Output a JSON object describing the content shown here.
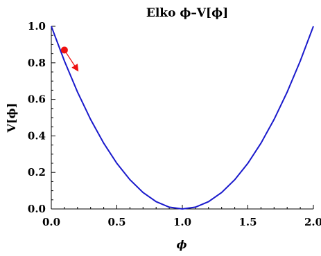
{
  "chart_data": {
    "type": "line",
    "title": "Elko ϕ–V[ϕ]",
    "xlabel": "ϕ",
    "ylabel": "V[ϕ]",
    "xlim": [
      0,
      2
    ],
    "ylim": [
      0,
      1
    ],
    "xticks": [
      "0.0",
      "0.5",
      "1.0",
      "1.5",
      "2.0"
    ],
    "yticks": [
      "0.0",
      "0.2",
      "0.4",
      "0.6",
      "0.8",
      "1.0"
    ],
    "series": [
      {
        "color": "#1a1acc",
        "x": [
          0.0,
          0.1,
          0.2,
          0.3,
          0.4,
          0.5,
          0.6,
          0.7,
          0.8,
          0.9,
          1.0,
          1.1,
          1.2,
          1.3,
          1.4,
          1.5,
          1.6,
          1.7,
          1.8,
          1.9,
          2.0
        ],
        "y": [
          1.0,
          0.81,
          0.64,
          0.49,
          0.36,
          0.25,
          0.16,
          0.09,
          0.04,
          0.01,
          0.0,
          0.01,
          0.04,
          0.09,
          0.16,
          0.25,
          0.36,
          0.49,
          0.64,
          0.81,
          1.0
        ]
      }
    ],
    "marker": {
      "x": 0.1,
      "y": 0.87,
      "color": "#ee1111"
    },
    "arrow": {
      "from": [
        0.1,
        0.87
      ],
      "to": [
        0.2,
        0.76
      ],
      "color": "#ee1111"
    }
  }
}
